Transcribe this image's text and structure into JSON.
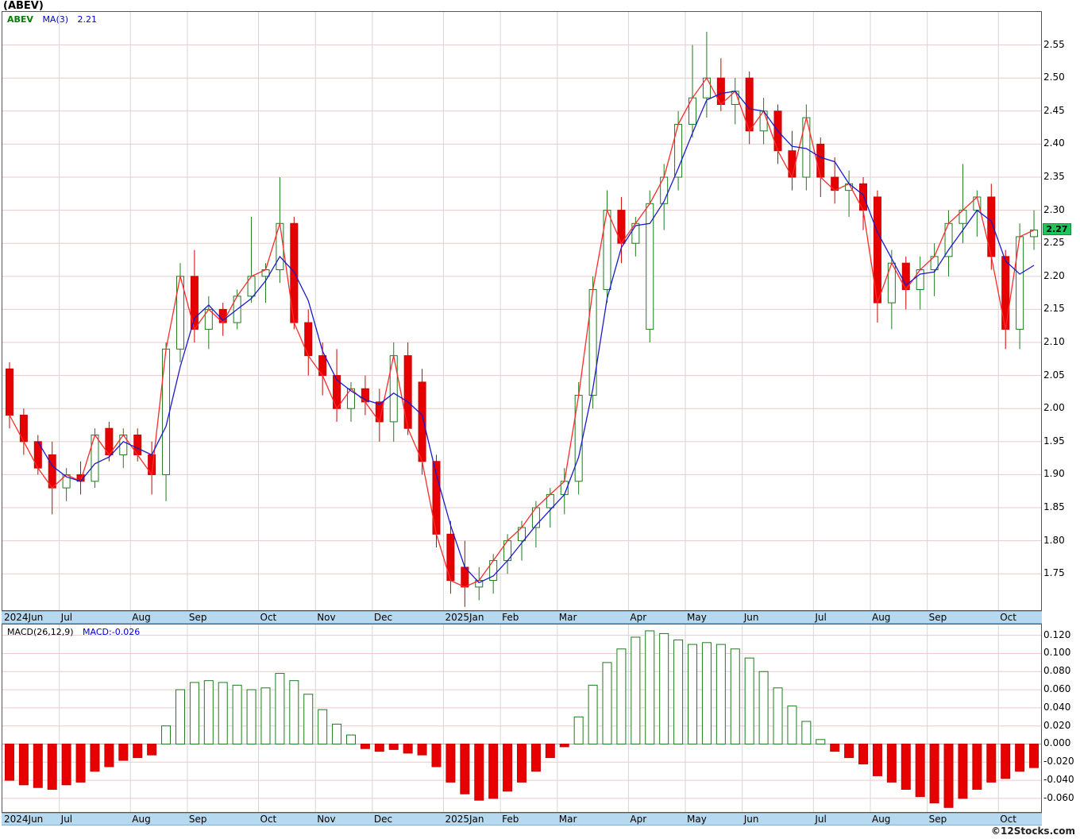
{
  "title": "(ABEV)",
  "price_panel": {
    "legend": {
      "symbol": "ABEV",
      "ma_label": "MA(3)",
      "ma_value": "2.21"
    },
    "last_price_badge": "2.27"
  },
  "macd_panel": {
    "params_label": "MACD(26,12,9)",
    "value_label": "MACD:-0.026"
  },
  "footer": "©12Stocks.com",
  "colors": {
    "up": "#1f7a1f",
    "up_fill": "#ffffff",
    "down": "#e60000",
    "down_stroke": "#cc0000",
    "close_line": "#ff2a2a",
    "ma_line": "#1a1acc",
    "grid_h": "#eccaca",
    "grid_v": "#d6d6d6",
    "zero_line": "#aaaaaa",
    "badge_bg": "#22c35a",
    "strip_bg": "#b7d9ef"
  },
  "chart_data": {
    "type": "candlestick",
    "symbol": "ABEV",
    "interval": "weekly",
    "x_labels": [
      "2024Jun",
      "Jul",
      "Aug",
      "Sep",
      "Oct",
      "Nov",
      "Dec",
      "2025Jan",
      "Feb",
      "Mar",
      "Apr",
      "May",
      "Jun",
      "Jul",
      "Aug",
      "Sep",
      "Oct"
    ],
    "x_label_week_index": [
      1,
      5,
      10,
      14,
      19,
      23,
      27,
      32,
      36,
      40,
      45,
      49,
      53,
      58,
      62,
      66,
      71
    ],
    "price": {
      "ylim": [
        1.695,
        2.6
      ],
      "y_ticks": [
        "2.55",
        "2.50",
        "2.45",
        "2.40",
        "2.35",
        "2.30",
        "2.25",
        "2.20",
        "2.15",
        "2.10",
        "2.05",
        "2.00",
        "1.95",
        "1.90",
        "1.85",
        "1.80",
        "1.75"
      ],
      "last_close": 2.27,
      "overlays": [
        {
          "name": "close",
          "color": "#ff2a2a"
        },
        {
          "name": "MA(3)",
          "color": "#1a1acc",
          "last_value": 2.21
        }
      ],
      "candles": [
        [
          2.06,
          2.07,
          1.97,
          1.99
        ],
        [
          1.99,
          2.0,
          1.93,
          1.95
        ],
        [
          1.95,
          1.96,
          1.9,
          1.91
        ],
        [
          1.93,
          1.95,
          1.84,
          1.88
        ],
        [
          1.88,
          1.91,
          1.86,
          1.9
        ],
        [
          1.9,
          1.92,
          1.87,
          1.89
        ],
        [
          1.89,
          1.97,
          1.88,
          1.96
        ],
        [
          1.97,
          1.98,
          1.92,
          1.93
        ],
        [
          1.93,
          1.97,
          1.91,
          1.96
        ],
        [
          1.96,
          1.97,
          1.92,
          1.93
        ],
        [
          1.93,
          1.95,
          1.87,
          1.9
        ],
        [
          1.9,
          2.1,
          1.86,
          2.09
        ],
        [
          2.09,
          2.22,
          2.07,
          2.2
        ],
        [
          2.2,
          2.24,
          2.1,
          2.12
        ],
        [
          2.12,
          2.17,
          2.09,
          2.15
        ],
        [
          2.15,
          2.16,
          2.11,
          2.13
        ],
        [
          2.13,
          2.18,
          2.12,
          2.17
        ],
        [
          2.17,
          2.29,
          2.16,
          2.2
        ],
        [
          2.2,
          2.22,
          2.16,
          2.21
        ],
        [
          2.21,
          2.35,
          2.19,
          2.28
        ],
        [
          2.28,
          2.29,
          2.12,
          2.13
        ],
        [
          2.13,
          2.15,
          2.05,
          2.08
        ],
        [
          2.08,
          2.1,
          2.02,
          2.05
        ],
        [
          2.05,
          2.09,
          1.98,
          2.0
        ],
        [
          2.0,
          2.04,
          1.98,
          2.03
        ],
        [
          2.03,
          2.05,
          1.99,
          2.01
        ],
        [
          2.01,
          2.03,
          1.95,
          1.98
        ],
        [
          1.98,
          2.1,
          1.95,
          2.08
        ],
        [
          2.08,
          2.1,
          1.96,
          1.97
        ],
        [
          2.04,
          2.06,
          1.9,
          1.92
        ],
        [
          1.92,
          1.93,
          1.79,
          1.81
        ],
        [
          1.81,
          1.83,
          1.72,
          1.74
        ],
        [
          1.76,
          1.8,
          1.7,
          1.73
        ],
        [
          1.73,
          1.76,
          1.71,
          1.74
        ],
        [
          1.74,
          1.78,
          1.72,
          1.77
        ],
        [
          1.77,
          1.81,
          1.75,
          1.8
        ],
        [
          1.8,
          1.83,
          1.77,
          1.82
        ],
        [
          1.82,
          1.86,
          1.79,
          1.85
        ],
        [
          1.85,
          1.88,
          1.82,
          1.87
        ],
        [
          1.87,
          1.91,
          1.84,
          1.89
        ],
        [
          1.89,
          2.04,
          1.87,
          2.02
        ],
        [
          2.02,
          2.2,
          2.0,
          2.18
        ],
        [
          2.18,
          2.33,
          2.16,
          2.3
        ],
        [
          2.3,
          2.32,
          2.22,
          2.25
        ],
        [
          2.25,
          2.29,
          2.23,
          2.28
        ],
        [
          2.12,
          2.33,
          2.1,
          2.31
        ],
        [
          2.31,
          2.37,
          2.27,
          2.35
        ],
        [
          2.35,
          2.45,
          2.33,
          2.43
        ],
        [
          2.43,
          2.55,
          2.41,
          2.47
        ],
        [
          2.47,
          2.57,
          2.44,
          2.5
        ],
        [
          2.5,
          2.53,
          2.45,
          2.46
        ],
        [
          2.46,
          2.5,
          2.43,
          2.48
        ],
        [
          2.5,
          2.51,
          2.4,
          2.42
        ],
        [
          2.42,
          2.47,
          2.4,
          2.45
        ],
        [
          2.45,
          2.46,
          2.37,
          2.39
        ],
        [
          2.39,
          2.42,
          2.33,
          2.35
        ],
        [
          2.35,
          2.46,
          2.33,
          2.44
        ],
        [
          2.4,
          2.41,
          2.32,
          2.35
        ],
        [
          2.35,
          2.38,
          2.31,
          2.33
        ],
        [
          2.33,
          2.36,
          2.29,
          2.34
        ],
        [
          2.34,
          2.35,
          2.27,
          2.3
        ],
        [
          2.32,
          2.33,
          2.13,
          2.16
        ],
        [
          2.16,
          2.24,
          2.12,
          2.22
        ],
        [
          2.22,
          2.23,
          2.15,
          2.18
        ],
        [
          2.18,
          2.23,
          2.15,
          2.21
        ],
        [
          2.21,
          2.25,
          2.17,
          2.23
        ],
        [
          2.23,
          2.3,
          2.2,
          2.28
        ],
        [
          2.28,
          2.37,
          2.25,
          2.3
        ],
        [
          2.3,
          2.33,
          2.26,
          2.32
        ],
        [
          2.32,
          2.34,
          2.21,
          2.23
        ],
        [
          2.23,
          2.24,
          2.09,
          2.12
        ],
        [
          2.12,
          2.28,
          2.09,
          2.26
        ],
        [
          2.26,
          2.3,
          2.24,
          2.27
        ]
      ]
    },
    "macd": {
      "params": "(26,12,9)",
      "ylim": [
        -0.075,
        0.132
      ],
      "y_ticks": [
        "0.120",
        "0.100",
        "0.080",
        "0.060",
        "0.040",
        "0.020",
        "0.000",
        "-0.020",
        "-0.040",
        "-0.060"
      ],
      "last_value": -0.026,
      "histogram": [
        -0.04,
        -0.045,
        -0.048,
        -0.05,
        -0.045,
        -0.042,
        -0.03,
        -0.025,
        -0.018,
        -0.015,
        -0.012,
        0.02,
        0.06,
        0.068,
        0.07,
        0.068,
        0.065,
        0.06,
        0.062,
        0.078,
        0.07,
        0.055,
        0.038,
        0.022,
        0.01,
        -0.005,
        -0.008,
        -0.006,
        -0.01,
        -0.012,
        -0.025,
        -0.042,
        -0.055,
        -0.062,
        -0.06,
        -0.052,
        -0.042,
        -0.03,
        -0.015,
        -0.003,
        0.03,
        0.065,
        0.09,
        0.105,
        0.118,
        0.125,
        0.122,
        0.115,
        0.11,
        0.112,
        0.11,
        0.105,
        0.095,
        0.08,
        0.062,
        0.042,
        0.025,
        0.005,
        -0.008,
        -0.015,
        -0.022,
        -0.035,
        -0.042,
        -0.05,
        -0.058,
        -0.065,
        -0.07,
        -0.06,
        -0.05,
        -0.042,
        -0.038,
        -0.03,
        -0.026
      ]
    }
  }
}
